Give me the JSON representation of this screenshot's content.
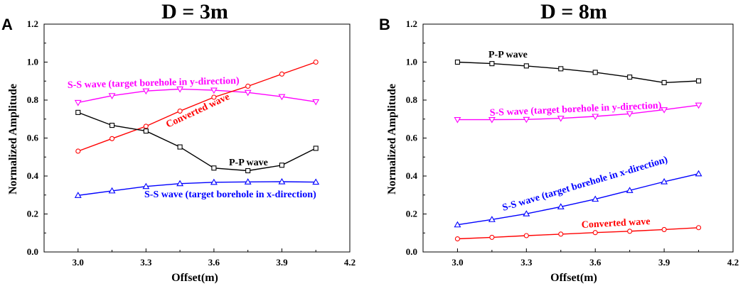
{
  "figure": {
    "x_ticks": [
      "3.0",
      "3.3",
      "3.6",
      "3.9",
      "4.2"
    ],
    "y_ticks": [
      "0.0",
      "0.2",
      "0.4",
      "0.6",
      "0.8",
      "1.0",
      "1.2"
    ],
    "colors": {
      "P-P wave": "#000000",
      "S-S wave y": "#ff00ff",
      "S-S wave x": "#0000ff",
      "Converted wave": "#ff0000"
    }
  },
  "chart_data": [
    {
      "type": "line",
      "panel": "A",
      "title": "D = 3m",
      "xlabel": "Offset(m)",
      "ylabel": "Normalized Amplitude",
      "xlim": [
        2.85,
        4.2
      ],
      "ylim": [
        0,
        1.2
      ],
      "x": [
        3.0,
        3.15,
        3.3,
        3.45,
        3.6,
        3.75,
        3.9,
        4.05
      ],
      "series": [
        {
          "name": "S-S wave (target borehole in y-direction)",
          "color": "#ff00ff",
          "marker": "triangle-down",
          "values": [
            0.787,
            0.823,
            0.848,
            0.858,
            0.852,
            0.84,
            0.818,
            0.791
          ]
        },
        {
          "name": "Converted wave",
          "color": "#ff0000",
          "marker": "circle",
          "values": [
            0.531,
            0.597,
            0.662,
            0.742,
            0.815,
            0.873,
            0.937,
            1.0
          ]
        },
        {
          "name": "P-P wave",
          "color": "#000000",
          "marker": "square",
          "values": [
            0.735,
            0.667,
            0.637,
            0.553,
            0.442,
            0.428,
            0.457,
            0.546
          ]
        },
        {
          "name": "S-S wave (target borehole in x-direction)",
          "color": "#0000ff",
          "marker": "triangle-up",
          "values": [
            0.298,
            0.322,
            0.345,
            0.36,
            0.367,
            0.369,
            0.37,
            0.368
          ]
        }
      ],
      "annotations": [
        "S-S wave (target borehole in y-direction)",
        "Converted wave",
        "P-P wave",
        "S-S wave (target borehole in x-direction)"
      ]
    },
    {
      "type": "line",
      "panel": "B",
      "title": "D = 8m",
      "xlabel": "Offset(m)",
      "ylabel": "Normalized Amplitude",
      "xlim": [
        2.85,
        4.2
      ],
      "ylim": [
        0,
        1.2
      ],
      "x": [
        3.0,
        3.15,
        3.3,
        3.45,
        3.6,
        3.75,
        3.9,
        4.05
      ],
      "series": [
        {
          "name": "P-P wave",
          "color": "#000000",
          "marker": "square",
          "values": [
            1.0,
            0.992,
            0.98,
            0.965,
            0.946,
            0.921,
            0.892,
            0.901
          ]
        },
        {
          "name": "S-S wave (target borehole in y-direction)",
          "color": "#ff00ff",
          "marker": "triangle-down",
          "values": [
            0.697,
            0.697,
            0.698,
            0.704,
            0.714,
            0.728,
            0.749,
            0.773
          ]
        },
        {
          "name": "S-S wave (target borehole in x-direction)",
          "color": "#0000ff",
          "marker": "triangle-up",
          "values": [
            0.143,
            0.171,
            0.201,
            0.238,
            0.278,
            0.324,
            0.37,
            0.412
          ]
        },
        {
          "name": "Converted wave",
          "color": "#ff0000",
          "marker": "circle",
          "values": [
            0.069,
            0.077,
            0.086,
            0.094,
            0.102,
            0.109,
            0.118,
            0.128
          ]
        }
      ],
      "annotations": [
        "P-P wave",
        "S-S wave (target borehole in y-direction)",
        "S-S wave (target borehole in x-direction)",
        "Converted wave"
      ]
    }
  ]
}
